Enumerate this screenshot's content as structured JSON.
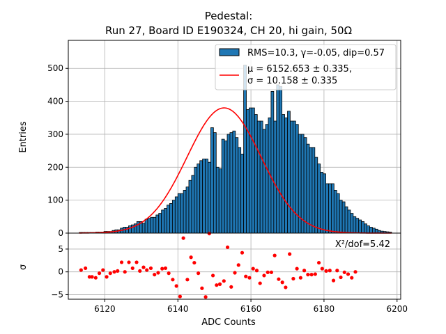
{
  "chart_data": [
    {
      "type": "bar",
      "panel": "histogram",
      "title": "Pedestal:",
      "subtitle": "Run 27, Board ID E190324, CH 20, hi gain, 50Ω",
      "xlabel": "",
      "ylabel": "Entries",
      "xlim": [
        6110,
        6201
      ],
      "ylim": [
        0,
        585
      ],
      "yticks": [
        0,
        100,
        200,
        300,
        400,
        500
      ],
      "grid": true,
      "bin_width": 0.75,
      "bin_start": 6113.0,
      "values": [
        2,
        2,
        2,
        2,
        2,
        2,
        3,
        3,
        3,
        5,
        5,
        5,
        8,
        10,
        10,
        15,
        18,
        18,
        22,
        25,
        28,
        35,
        35,
        30,
        42,
        45,
        48,
        48,
        55,
        60,
        70,
        75,
        85,
        90,
        100,
        110,
        120,
        120,
        130,
        140,
        160,
        175,
        200,
        210,
        220,
        225,
        225,
        215,
        320,
        305,
        200,
        195,
        285,
        280,
        300,
        305,
        310,
        290,
        260,
        240,
        510,
        375,
        380,
        380,
        360,
        340,
        340,
        315,
        330,
        350,
        430,
        340,
        450,
        445,
        360,
        350,
        370,
        340,
        340,
        330,
        300,
        300,
        290,
        270,
        260,
        260,
        230,
        210,
        185,
        180,
        150,
        150,
        150,
        130,
        120,
        100,
        95,
        80,
        70,
        60,
        50,
        45,
        40,
        35,
        28,
        22,
        18,
        15,
        12,
        8,
        6,
        5,
        4,
        3
      ],
      "fit": {
        "type": "gaussian",
        "mu": 6152.653,
        "sigma": 10.158,
        "amplitude": 380,
        "color": "#ff0000"
      },
      "legend": {
        "placement": "top-right",
        "entries": [
          {
            "kind": "patch",
            "label": "RMS=10.3, γ=-0.05, dip=0.57",
            "color": "#1f77b4"
          },
          {
            "kind": "line",
            "label_line1": "μ = 6152.653 ± 0.335,",
            "label_line2": "σ = 10.158 ± 0.335",
            "color": "#ff0000"
          }
        ]
      },
      "bar_color": "#1f77b4",
      "edge_color": "#000000"
    },
    {
      "type": "scatter",
      "panel": "residuals",
      "xlabel": "ADC Counts",
      "ylabel": "σ",
      "xlim": [
        6110,
        6201
      ],
      "ylim": [
        -6,
        8.5
      ],
      "xticks": [
        6120,
        6140,
        6160,
        6180,
        6200
      ],
      "yticks": [
        -5,
        0,
        5
      ],
      "grid": true,
      "annotation": "X²/dof=5.42",
      "color": "#ff0000",
      "x": [
        6113.5,
        6114.7,
        6115.8,
        6116.5,
        6117.5,
        6118.5,
        6119.5,
        6120.5,
        6121.5,
        6122.6,
        6123.5,
        6124.6,
        6125.5,
        6126.6,
        6127.6,
        6128.7,
        6129.6,
        6130.6,
        6131.5,
        6132.6,
        6133.6,
        6134.6,
        6135.7,
        6136.6,
        6137.5,
        6138.6,
        6139.6,
        6140.6,
        6141.5,
        6142.6,
        6143.6,
        6144.5,
        6145.6,
        6146.6,
        6147.6,
        6148.6,
        6149.6,
        6150.6,
        6151.5,
        6152.6,
        6153.6,
        6154.6,
        6155.6,
        6156.6,
        6157.6,
        6158.6,
        6159.6,
        6160.6,
        6161.6,
        6162.5,
        6163.6,
        6164.6,
        6165.6,
        6166.5,
        6167.6,
        6168.6,
        6169.5,
        6170.6,
        6171.6,
        6172.6,
        6173.6,
        6174.6,
        6175.6,
        6176.6,
        6177.6,
        6178.6,
        6179.5,
        6180.6,
        6181.6,
        6182.6,
        6183.6,
        6184.6,
        6185.6,
        6186.6,
        6187.6,
        6188.6
      ],
      "y": [
        0.4,
        0.8,
        -1.1,
        -1.1,
        -1.3,
        -0.3,
        0.4,
        -1.1,
        -0.3,
        0.0,
        0.2,
        2.1,
        0.0,
        2.1,
        0.8,
        2.1,
        0.2,
        1.0,
        0.4,
        0.8,
        -0.6,
        -0.2,
        0.7,
        0.8,
        -0.3,
        -1.7,
        -3.1,
        -5.4,
        7.4,
        -1.7,
        3.2,
        2.0,
        -0.3,
        -3.6,
        -5.5,
        8.4,
        -0.8,
        -2.9,
        -2.7,
        -2.0,
        5.4,
        -3.3,
        -0.2,
        1.5,
        4.2,
        -1.0,
        -1.3,
        0.7,
        0.3,
        -2.5,
        -0.8,
        -0.1,
        -0.1,
        3.6,
        -1.6,
        -2.3,
        -3.4,
        3.9,
        -1.5,
        0.7,
        -1.3,
        0.3,
        -0.6,
        -0.6,
        -0.5,
        2.0,
        0.7,
        0.2,
        0.3,
        -1.9,
        0.3,
        -1.2,
        -0.1,
        -0.5,
        -1.3,
        0.0
      ]
    }
  ]
}
